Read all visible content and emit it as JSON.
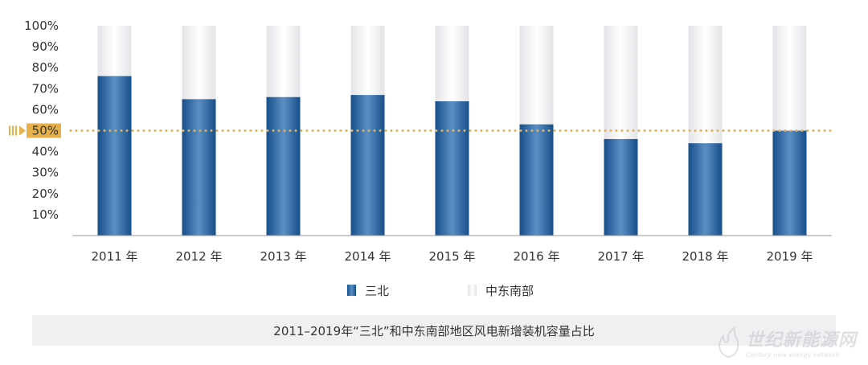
{
  "chart_data": {
    "type": "bar",
    "stacked": true,
    "percent": true,
    "title": "2011–2019年“三北”和中东南部地区风电新增装机容量占比",
    "categories": [
      "2011 年",
      "2012 年",
      "2013 年",
      "2014 年",
      "2015 年",
      "2016 年",
      "2017 年",
      "2018 年",
      "2019 年"
    ],
    "series": [
      {
        "name": "三北",
        "color": "#1f5c99",
        "values": [
          76,
          65,
          66,
          67,
          64,
          53,
          46,
          44,
          50
        ]
      },
      {
        "name": "中东南部",
        "color": "#f2f2f4",
        "values": [
          24,
          35,
          34,
          33,
          36,
          47,
          54,
          56,
          50
        ]
      }
    ],
    "yticks": [
      "10%",
      "20%",
      "30%",
      "40%",
      "50%",
      "60%",
      "70%",
      "80%",
      "90%",
      "100%"
    ],
    "ylim": [
      0,
      100
    ],
    "reference_line": {
      "value": 50,
      "label": "50%",
      "color": "#e8b04a"
    },
    "legend_position": "bottom-center",
    "grid": false
  },
  "watermark": {
    "cn": "世纪新能源网",
    "en": "Century new energy network"
  }
}
